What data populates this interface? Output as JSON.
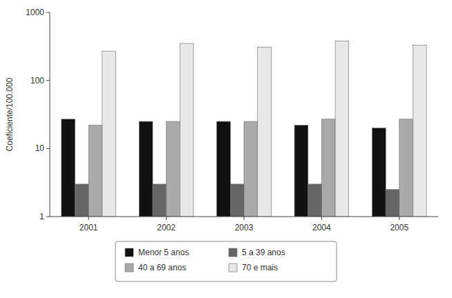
{
  "chart_data": {
    "type": "bar",
    "categories": [
      "2001",
      "2002",
      "2003",
      "2004",
      "2005"
    ],
    "series": [
      {
        "name": "Menor 5 anos",
        "color": "#111111",
        "values": [
          27,
          25,
          25,
          22,
          20
        ]
      },
      {
        "name": "5 a 39 anos",
        "color": "#666666",
        "values": [
          3.0,
          3.0,
          3.0,
          3.0,
          2.5
        ]
      },
      {
        "name": "40 a 69 anos",
        "color": "#aaaaaa",
        "values": [
          22,
          25,
          25,
          27,
          27
        ]
      },
      {
        "name": "70 e mais",
        "color": "#e8e8e8",
        "values": [
          270,
          350,
          310,
          380,
          330
        ]
      }
    ],
    "ylabel": "Coeficiente/100.000",
    "ylim": [
      1,
      1000
    ],
    "yticks": [
      1,
      10,
      100,
      1000
    ],
    "log": "y",
    "grid": false,
    "legend": "bottom"
  }
}
